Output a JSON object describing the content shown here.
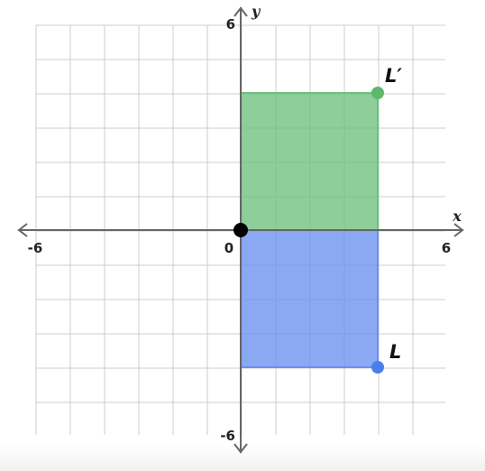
{
  "axes": {
    "x_label": "x",
    "y_label": "y",
    "x_range": [
      -6,
      6
    ],
    "y_range": [
      -6,
      6
    ],
    "grid_step": 1,
    "grid": true,
    "tick_labels": {
      "x_min": "-6",
      "x_max": "6",
      "origin": "0",
      "y_max": "6",
      "y_min": "-6"
    }
  },
  "shapes": {
    "image_rect": {
      "label": "L′",
      "corners": [
        [
          0,
          0
        ],
        [
          4,
          0
        ],
        [
          4,
          4
        ],
        [
          0,
          4
        ]
      ],
      "color": "#6ec07f",
      "point": [
        4,
        4
      ]
    },
    "original_rect": {
      "label": "L",
      "corners": [
        [
          0,
          0
        ],
        [
          4,
          0
        ],
        [
          4,
          -4
        ],
        [
          0,
          -4
        ]
      ],
      "color": "#6a8ff0",
      "point": [
        4,
        -4
      ]
    }
  },
  "origin_point": {
    "x": 0,
    "y": 0,
    "color": "#000000"
  },
  "colors": {
    "grid": "#cccccc",
    "axis": "#666666",
    "image_point": "#5cb86c",
    "original_point": "#4a7fe8"
  }
}
